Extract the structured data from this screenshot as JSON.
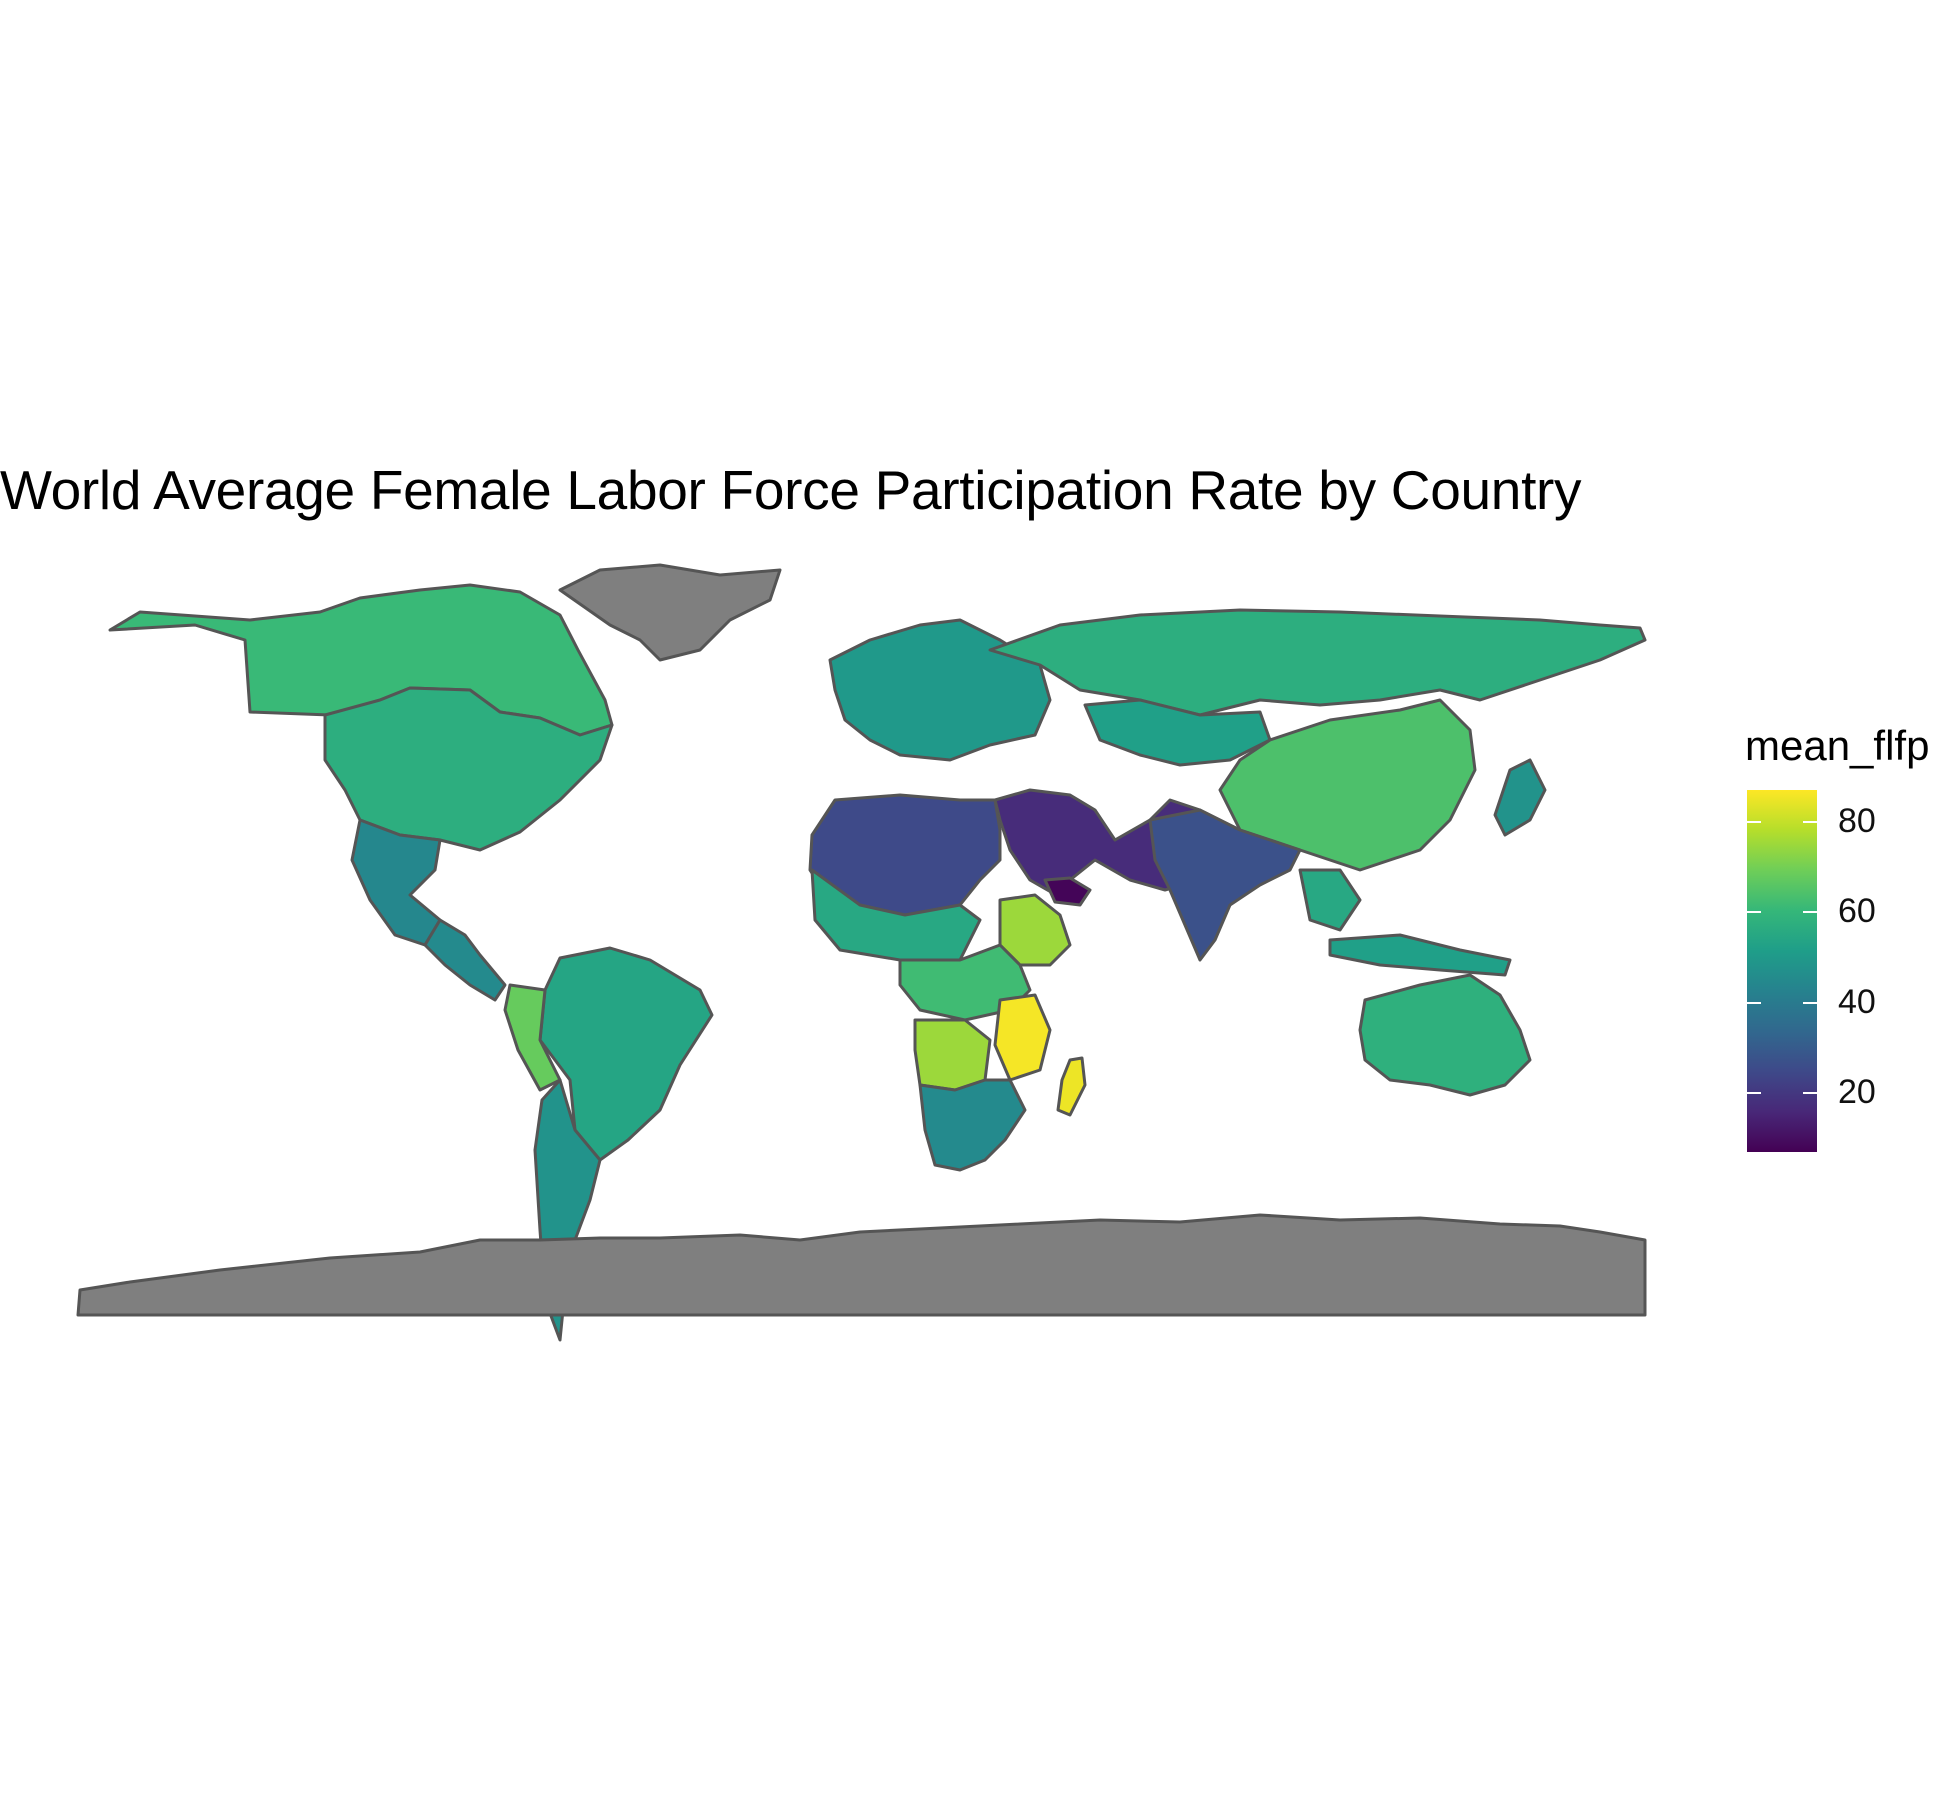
{
  "title": "World Average Female Labor Force Participation Rate by Country",
  "legend": {
    "title": "mean_flfp",
    "ticks": [
      {
        "label": "80",
        "value": 80
      },
      {
        "label": "60",
        "value": 60
      },
      {
        "label": "40",
        "value": 40
      },
      {
        "label": "20",
        "value": 20
      }
    ],
    "min": 7,
    "max": 87,
    "palette": "viridis"
  },
  "colors": {
    "no_data": "#7f7f7f",
    "border": "#555555",
    "background": "#ffffff"
  },
  "chart_data": {
    "type": "choropleth",
    "variable": "mean_flfp",
    "regions": [
      {
        "name": "Canada",
        "value": 61
      },
      {
        "name": "United States",
        "value": 57
      },
      {
        "name": "Mexico",
        "value": 44
      },
      {
        "name": "Central America",
        "value": 45
      },
      {
        "name": "Brazil",
        "value": 54
      },
      {
        "name": "Peru",
        "value": 68
      },
      {
        "name": "Argentina",
        "value": 48
      },
      {
        "name": "Europe",
        "value": 50
      },
      {
        "name": "Russia",
        "value": 57
      },
      {
        "name": "China",
        "value": 64
      },
      {
        "name": "Kazakhstan",
        "value": 52
      },
      {
        "name": "India",
        "value": 27
      },
      {
        "name": "Arab countries",
        "value": 17
      },
      {
        "name": "Yemen",
        "value": 8
      },
      {
        "name": "North Africa",
        "value": 25
      },
      {
        "name": "Sahel",
        "value": 55
      },
      {
        "name": "Ethiopia",
        "value": 75
      },
      {
        "name": "Tanzania",
        "value": 86
      },
      {
        "name": "Madagascar",
        "value": 85
      },
      {
        "name": "Southern Africa",
        "value": 45
      },
      {
        "name": "Australia",
        "value": 58
      },
      {
        "name": "Southeast Asia",
        "value": 55
      },
      {
        "name": "Japan",
        "value": 48
      },
      {
        "name": "Greenland",
        "value": null
      },
      {
        "name": "Antarctica",
        "value": null
      }
    ]
  }
}
